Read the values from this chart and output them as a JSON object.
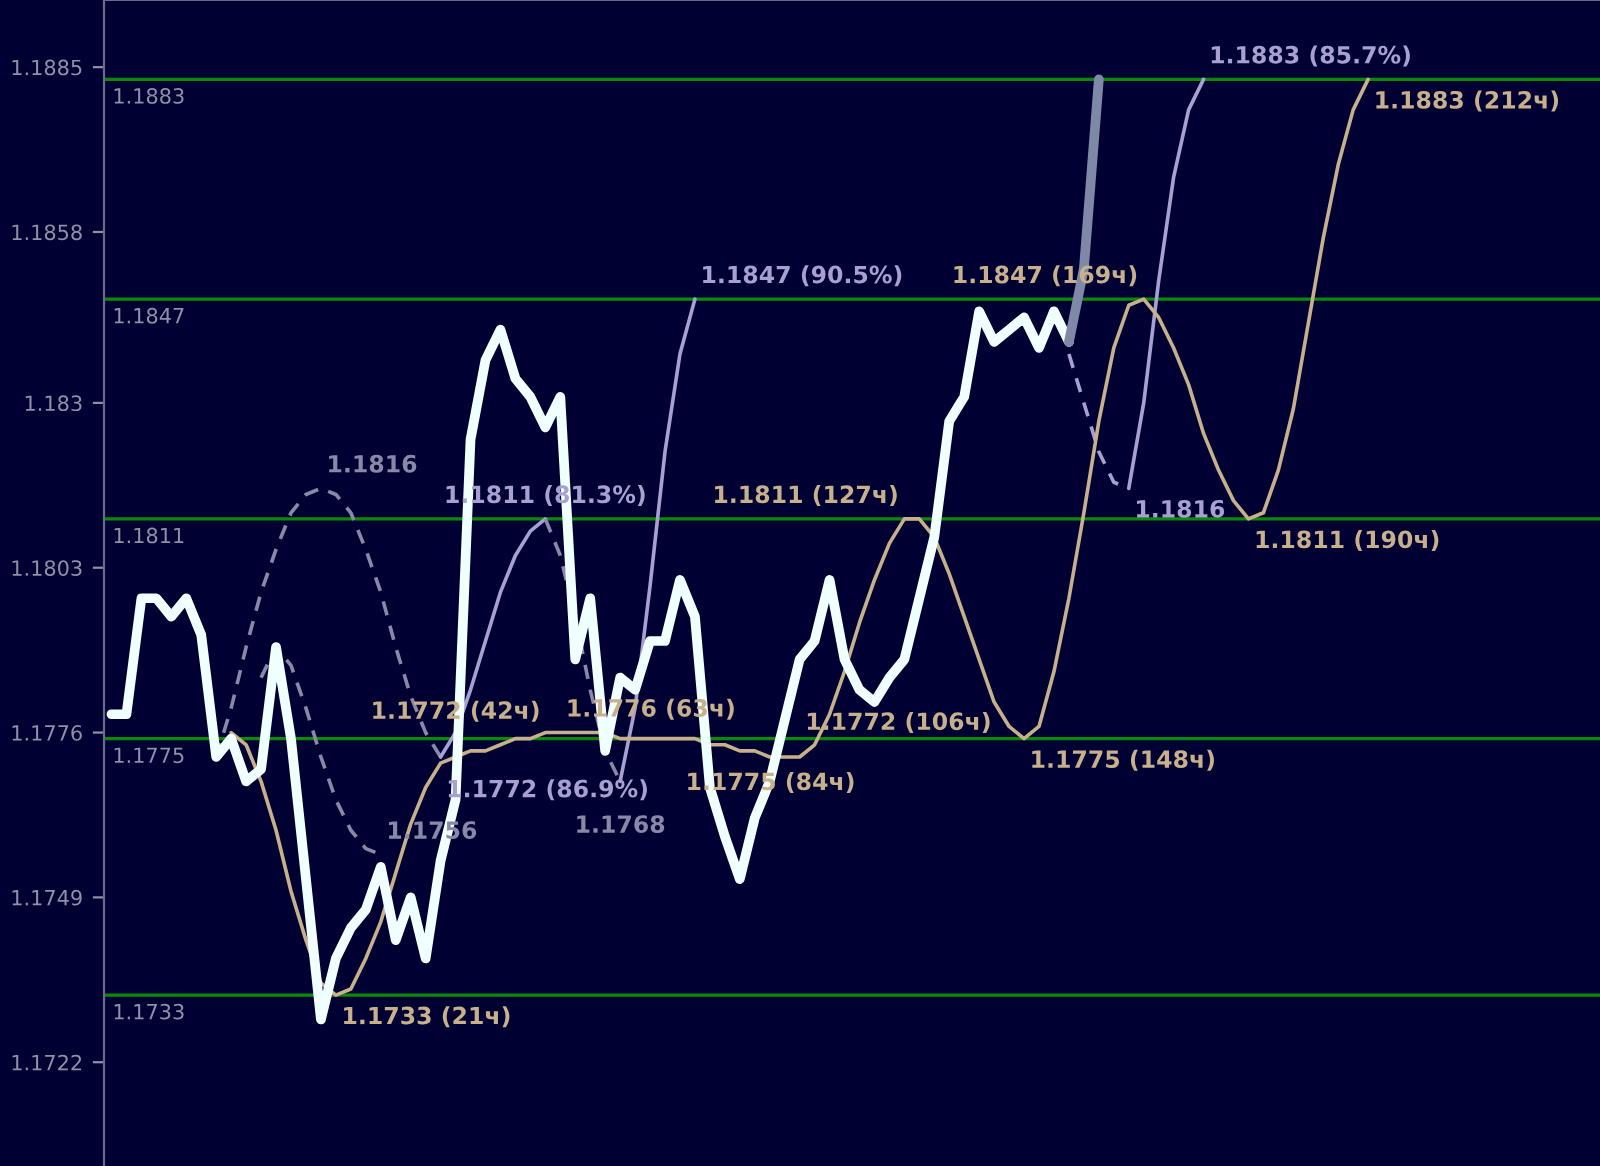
{
  "chart_data": {
    "type": "line",
    "categories": [
      null,
      null,
      null,
      null,
      null,
      null,
      null,
      null,
      null,
      null,
      null,
      null,
      null,
      null,
      null,
      null,
      null,
      null,
      null,
      null,
      null,
      null,
      null,
      null,
      null,
      null,
      null,
      null,
      null,
      null,
      null,
      null,
      null,
      null,
      null,
      null,
      null,
      null,
      null,
      null,
      null,
      null,
      null,
      null,
      null,
      null,
      null,
      null,
      null,
      null,
      null,
      null,
      null,
      null,
      null,
      null,
      null,
      null,
      null,
      null,
      null,
      null,
      null,
      null,
      null,
      null,
      null,
      null,
      null,
      null,
      null,
      null,
      null,
      null,
      null,
      null,
      null,
      null,
      null,
      null,
      null,
      null,
      null,
      null,
      null,
      null,
      null,
      null,
      null,
      null,
      null,
      null,
      null,
      null,
      null,
      null,
      null,
      null,
      null,
      null
    ],
    "ylim": [
      1.1705,
      1.1896
    ],
    "yticks": [
      1.1885,
      1.1858,
      1.183,
      1.1803,
      1.1776,
      1.1749,
      1.1722
    ],
    "tick_labels": "y",
    "grid": false,
    "legend": false,
    "line_style": "solid",
    "series": [
      {
        "color": "#f0ffff",
        "values": [
          1.1779,
          1.1779,
          1.1798,
          1.1798,
          1.1795,
          1.1798,
          1.1792,
          1.1772,
          1.1775,
          1.1768,
          1.177,
          1.179,
          1.1775,
          1.1752,
          1.1729,
          1.1739,
          1.1744,
          1.1747,
          1.1754,
          1.1742,
          1.1749,
          1.1739,
          1.1755,
          1.1765,
          1.1824,
          1.1837,
          1.1842,
          1.1834,
          1.1831,
          1.1826,
          1.1831,
          1.1788,
          1.1798,
          1.1773,
          1.1785,
          1.1783,
          1.1791,
          1.1791,
          1.1801,
          1.1795,
          1.1767,
          1.1759,
          1.1752,
          1.1762,
          1.1768,
          1.1778,
          1.1788,
          1.1791,
          1.1801,
          1.1788,
          1.1783,
          1.1781,
          1.1785,
          1.1788,
          1.1798,
          1.1808,
          1.1827,
          1.1831,
          1.1845,
          1.184,
          1.1842,
          1.1844,
          1.1839,
          1.1845,
          1.184,
          null,
          null,
          null,
          null,
          null,
          null,
          null,
          null,
          null,
          null,
          null,
          null,
          null,
          null,
          null,
          null,
          null,
          null,
          null,
          null,
          null,
          null,
          null,
          null,
          null,
          null,
          null,
          null,
          null,
          null,
          null,
          null,
          null,
          null,
          null
        ]
      },
      {
        "color": "#8088a8",
        "values": [
          null,
          null,
          null,
          null,
          null,
          null,
          null,
          null,
          null,
          null,
          null,
          null,
          null,
          null,
          null,
          null,
          null,
          null,
          null,
          null,
          null,
          null,
          null,
          null,
          null,
          null,
          null,
          null,
          null,
          null,
          null,
          null,
          null,
          null,
          null,
          null,
          null,
          null,
          null,
          null,
          null,
          null,
          null,
          null,
          null,
          null,
          null,
          null,
          null,
          null,
          null,
          null,
          null,
          null,
          null,
          null,
          null,
          null,
          null,
          null,
          null,
          null,
          null,
          null,
          1.184,
          1.1852,
          1.1883,
          null,
          null,
          null,
          null,
          null,
          null,
          null,
          null,
          null,
          null,
          null,
          null,
          null,
          null,
          null,
          null,
          null,
          null,
          null,
          null,
          null,
          null,
          null,
          null,
          null,
          null,
          null,
          null,
          null,
          null,
          null,
          null,
          null
        ]
      },
      {
        "color": "#8a88a8",
        "line_style": "dashed",
        "values": [
          null,
          null,
          null,
          null,
          null,
          null,
          null,
          1.1772,
          1.178,
          1.179,
          1.1799,
          1.1806,
          1.1812,
          1.1815,
          1.1816,
          1.1815,
          1.1812,
          1.1806,
          1.1799,
          1.179,
          1.1782,
          1.1776,
          1.1772,
          null,
          null,
          null,
          null,
          null,
          null,
          null,
          null,
          null,
          null,
          null,
          null,
          null,
          null,
          null,
          null,
          null,
          null,
          null,
          null,
          null,
          null,
          null,
          null,
          null,
          null,
          null,
          null,
          null,
          null,
          null,
          null,
          null,
          null,
          null,
          null,
          null,
          null,
          null,
          null,
          null,
          null,
          null,
          null,
          null,
          null,
          null,
          null,
          null,
          null,
          null,
          null,
          null,
          null,
          null,
          null,
          null,
          null,
          null,
          null,
          null,
          null,
          null,
          null,
          null,
          null,
          null,
          null,
          null,
          null,
          null,
          null,
          null,
          null,
          null,
          null,
          null
        ],
        "value_labels": [
          null,
          null,
          null,
          null,
          null,
          null,
          null,
          null,
          null,
          null,
          null,
          null,
          null,
          null,
          "1.1816",
          null,
          null,
          null,
          null,
          null,
          null,
          null,
          null,
          null,
          null,
          null,
          null,
          null,
          null,
          null,
          null,
          null,
          null,
          null,
          null,
          null,
          null,
          null,
          null,
          null,
          null,
          null,
          null,
          null,
          null,
          null,
          null,
          null,
          null,
          null,
          null,
          null,
          null,
          null,
          null,
          null,
          null,
          null,
          null,
          null,
          null,
          null,
          null,
          null,
          null,
          null,
          null,
          null,
          null,
          null,
          null,
          null,
          null,
          null,
          null,
          null,
          null,
          null,
          null,
          null,
          null,
          null,
          null,
          null,
          null,
          null,
          null,
          null,
          null,
          null,
          null,
          null,
          null,
          null,
          null,
          null,
          null,
          null,
          null,
          null
        ]
      },
      {
        "color": "#8a88a8",
        "line_style": "dashed",
        "values": [
          null,
          null,
          null,
          null,
          null,
          null,
          null,
          null,
          null,
          null,
          1.1785,
          1.179,
          1.1787,
          1.178,
          1.1772,
          1.1765,
          1.176,
          1.1757,
          1.1756,
          null,
          null,
          null,
          null,
          null,
          null,
          null,
          null,
          null,
          null,
          null,
          null,
          null,
          null,
          null,
          null,
          null,
          null,
          null,
          null,
          null,
          null,
          null,
          null,
          null,
          null,
          null,
          null,
          null,
          null,
          null,
          null,
          null,
          null,
          null,
          null,
          null,
          null,
          null,
          null,
          null,
          null,
          null,
          null,
          null,
          null,
          null,
          null,
          null,
          null,
          null,
          null,
          null,
          null,
          null,
          null,
          null,
          null,
          null,
          null,
          null,
          null,
          null,
          null,
          null,
          null,
          null,
          null,
          null,
          null,
          null,
          null,
          null,
          null,
          null,
          null,
          null,
          null,
          null,
          null,
          null
        ],
        "value_labels": [
          null,
          null,
          null,
          null,
          null,
          null,
          null,
          null,
          null,
          null,
          null,
          null,
          null,
          null,
          null,
          null,
          null,
          null,
          "1.1756",
          null,
          null,
          null,
          null,
          null,
          null,
          null,
          null,
          null,
          null,
          null,
          null,
          null,
          null,
          null,
          null,
          null,
          null,
          null,
          null,
          null,
          null,
          null,
          null,
          null,
          null,
          null,
          null,
          null,
          null,
          null,
          null,
          null,
          null,
          null,
          null,
          null,
          null,
          null,
          null,
          null,
          null,
          null,
          null,
          null,
          null,
          null,
          null,
          null,
          null,
          null,
          null,
          null,
          null,
          null,
          null,
          null,
          null,
          null,
          null,
          null,
          null,
          null,
          null,
          null,
          null,
          null,
          null,
          null,
          null,
          null,
          null,
          null,
          null,
          null,
          null,
          null,
          null,
          null,
          null,
          null
        ]
      },
      {
        "color": "#a8a0d0",
        "values": [
          null,
          null,
          null,
          null,
          null,
          null,
          null,
          null,
          null,
          null,
          null,
          null,
          null,
          null,
          null,
          null,
          null,
          null,
          null,
          null,
          null,
          null,
          1.1772,
          1.1776,
          1.1783,
          1.1791,
          1.1799,
          1.1805,
          1.1809,
          1.1811,
          null,
          null,
          null,
          null,
          null,
          null,
          null,
          null,
          null,
          null,
          null,
          null,
          null,
          null,
          null,
          null,
          null,
          null,
          null,
          null,
          null,
          null,
          null,
          null,
          null,
          null,
          null,
          null,
          null,
          null,
          null,
          null,
          null,
          null,
          null,
          null,
          null,
          null,
          null,
          null,
          null,
          null,
          null,
          null,
          null,
          null,
          null,
          null,
          null,
          null,
          null,
          null,
          null,
          null,
          null,
          null,
          null,
          null,
          null,
          null,
          null,
          null,
          null,
          null,
          null,
          null,
          null,
          null,
          null,
          null
        ],
        "value_labels": [
          null,
          null,
          null,
          null,
          null,
          null,
          null,
          null,
          null,
          null,
          null,
          null,
          null,
          null,
          null,
          null,
          null,
          null,
          null,
          null,
          null,
          null,
          "1.1772 (86.9%)",
          null,
          null,
          null,
          null,
          null,
          null,
          "1.1811 (81.3%)",
          null,
          null,
          null,
          null,
          null,
          null,
          null,
          null,
          null,
          null,
          null,
          null,
          null,
          null,
          null,
          null,
          null,
          null,
          null,
          null,
          null,
          null,
          null,
          null,
          null,
          null,
          null,
          null,
          null,
          null,
          null,
          null,
          null,
          null,
          null,
          null,
          null,
          null,
          null,
          null,
          null,
          null,
          null,
          null,
          null,
          null,
          null,
          null,
          null,
          null,
          null,
          null,
          null,
          null,
          null,
          null,
          null,
          null,
          null,
          null,
          null,
          null,
          null,
          null,
          null,
          null,
          null,
          null,
          null,
          null
        ]
      },
      {
        "color": "#8a88a8",
        "line_style": "dashed",
        "values": [
          null,
          null,
          null,
          null,
          null,
          null,
          null,
          null,
          null,
          null,
          null,
          null,
          null,
          null,
          null,
          null,
          null,
          null,
          null,
          null,
          null,
          null,
          null,
          null,
          null,
          null,
          null,
          null,
          null,
          1.1811,
          1.1805,
          1.1795,
          1.1783,
          1.1773,
          1.1768,
          null,
          null,
          null,
          null,
          null,
          null,
          null,
          null,
          null,
          null,
          null,
          null,
          null,
          null,
          null,
          null,
          null,
          null,
          null,
          null,
          null,
          null,
          null,
          null,
          null,
          null,
          null,
          null,
          null,
          null,
          null,
          null,
          null,
          null,
          null,
          null,
          null,
          null,
          null,
          null,
          null,
          null,
          null,
          null,
          null,
          null,
          null,
          null,
          null,
          null,
          null,
          null,
          null,
          null,
          null,
          null,
          null,
          null,
          null,
          null,
          null,
          null,
          null,
          null,
          null
        ],
        "value_labels": [
          null,
          null,
          null,
          null,
          null,
          null,
          null,
          null,
          null,
          null,
          null,
          null,
          null,
          null,
          null,
          null,
          null,
          null,
          null,
          null,
          null,
          null,
          null,
          null,
          null,
          null,
          null,
          null,
          null,
          null,
          null,
          null,
          null,
          null,
          "1.1768",
          null,
          null,
          null,
          null,
          null,
          null,
          null,
          null,
          null,
          null,
          null,
          null,
          null,
          null,
          null,
          null,
          null,
          null,
          null,
          null,
          null,
          null,
          null,
          null,
          null,
          null,
          null,
          null,
          null,
          null,
          null,
          null,
          null,
          null,
          null,
          null,
          null,
          null,
          null,
          null,
          null,
          null,
          null,
          null,
          null,
          null,
          null,
          null,
          null,
          null,
          null,
          null,
          null,
          null,
          null,
          null,
          null,
          null,
          null,
          null,
          null,
          null,
          null,
          null,
          null
        ]
      },
      {
        "color": "#a8a0d0",
        "values": [
          null,
          null,
          null,
          null,
          null,
          null,
          null,
          null,
          null,
          null,
          null,
          null,
          null,
          null,
          null,
          null,
          null,
          null,
          null,
          null,
          null,
          null,
          null,
          null,
          null,
          null,
          null,
          null,
          null,
          null,
          null,
          null,
          null,
          null,
          1.1768,
          1.178,
          1.18,
          1.1822,
          1.1838,
          1.1847,
          null,
          null,
          null,
          null,
          null,
          null,
          null,
          null,
          null,
          null,
          null,
          null,
          null,
          null,
          null,
          null,
          null,
          null,
          null,
          null,
          null,
          null,
          null,
          null,
          null,
          null,
          null,
          null,
          null,
          null,
          null,
          null,
          null,
          null,
          null,
          null,
          null,
          null,
          null,
          null,
          null,
          null,
          null,
          null,
          null,
          null,
          null,
          null,
          null,
          null,
          null,
          null,
          null,
          null,
          null,
          null,
          null,
          null,
          null,
          null
        ],
        "value_labels": [
          null,
          null,
          null,
          null,
          null,
          null,
          null,
          null,
          null,
          null,
          null,
          null,
          null,
          null,
          null,
          null,
          null,
          null,
          null,
          null,
          null,
          null,
          null,
          null,
          null,
          null,
          null,
          null,
          null,
          null,
          null,
          null,
          null,
          null,
          null,
          null,
          null,
          null,
          null,
          "1.1847 (90.5%)",
          null,
          null,
          null,
          null,
          null,
          null,
          null,
          null,
          null,
          null,
          null,
          null,
          null,
          null,
          null,
          null,
          null,
          null,
          null,
          null,
          null,
          null,
          null,
          null,
          null,
          null,
          null,
          null,
          null,
          null,
          null,
          null,
          null,
          null,
          null,
          null,
          null,
          null,
          null,
          null,
          null,
          null,
          null,
          null,
          null,
          null,
          null,
          null,
          null,
          null,
          null,
          null,
          null,
          null,
          null,
          null,
          null,
          null,
          null,
          null
        ]
      },
      {
        "color": "#a8a0d0",
        "line_style": "dashed",
        "values": [
          null,
          null,
          null,
          null,
          null,
          null,
          null,
          null,
          null,
          null,
          null,
          null,
          null,
          null,
          null,
          null,
          null,
          null,
          null,
          null,
          null,
          null,
          null,
          null,
          null,
          null,
          null,
          null,
          null,
          null,
          null,
          null,
          null,
          null,
          null,
          null,
          null,
          null,
          null,
          null,
          null,
          null,
          null,
          null,
          null,
          null,
          null,
          null,
          null,
          null,
          null,
          null,
          null,
          null,
          null,
          null,
          null,
          null,
          null,
          null,
          null,
          null,
          null,
          null,
          1.1838,
          1.183,
          1.1822,
          1.1817,
          1.1816,
          null,
          null,
          null,
          null,
          null,
          null,
          null,
          null,
          null,
          null,
          null,
          null,
          null,
          null,
          null,
          null,
          null,
          null,
          null,
          null,
          null,
          null,
          null,
          null,
          null,
          null,
          null,
          null,
          null,
          null,
          null
        ],
        "value_labels": [
          null,
          null,
          null,
          null,
          null,
          null,
          null,
          null,
          null,
          null,
          null,
          null,
          null,
          null,
          null,
          null,
          null,
          null,
          null,
          null,
          null,
          null,
          null,
          null,
          null,
          null,
          null,
          null,
          null,
          null,
          null,
          null,
          null,
          null,
          null,
          null,
          null,
          null,
          null,
          null,
          null,
          null,
          null,
          null,
          null,
          null,
          null,
          null,
          null,
          null,
          null,
          null,
          null,
          null,
          null,
          null,
          null,
          null,
          null,
          null,
          null,
          null,
          null,
          null,
          null,
          null,
          null,
          null,
          "1.1816",
          null,
          null,
          null,
          null,
          null,
          null,
          null,
          null,
          null,
          null,
          null,
          null,
          null,
          null,
          null,
          null,
          null,
          null,
          null,
          null,
          null,
          null,
          null,
          null,
          null,
          null,
          null,
          null,
          null,
          null,
          null
        ]
      },
      {
        "color": "#a8a0d0",
        "values": [
          null,
          null,
          null,
          null,
          null,
          null,
          null,
          null,
          null,
          null,
          null,
          null,
          null,
          null,
          null,
          null,
          null,
          null,
          null,
          null,
          null,
          null,
          null,
          null,
          null,
          null,
          null,
          null,
          null,
          null,
          null,
          null,
          null,
          null,
          null,
          null,
          null,
          null,
          null,
          null,
          null,
          null,
          null,
          null,
          null,
          null,
          null,
          null,
          null,
          null,
          null,
          null,
          null,
          null,
          null,
          null,
          null,
          null,
          null,
          null,
          null,
          null,
          null,
          null,
          null,
          null,
          null,
          null,
          1.1816,
          1.183,
          1.185,
          1.1867,
          1.1878,
          1.1883,
          null,
          null,
          null,
          null,
          null,
          null,
          null,
          null,
          null,
          null,
          null,
          null,
          null,
          null,
          null,
          null,
          null,
          null,
          null,
          null,
          null,
          null,
          null,
          null,
          null,
          null
        ],
        "value_labels": [
          null,
          null,
          null,
          null,
          null,
          null,
          null,
          null,
          null,
          null,
          null,
          null,
          null,
          null,
          null,
          null,
          null,
          null,
          null,
          null,
          null,
          null,
          null,
          null,
          null,
          null,
          null,
          null,
          null,
          null,
          null,
          null,
          null,
          null,
          null,
          null,
          null,
          null,
          null,
          null,
          null,
          null,
          null,
          null,
          null,
          null,
          null,
          null,
          null,
          null,
          null,
          null,
          null,
          null,
          null,
          null,
          null,
          null,
          null,
          null,
          null,
          null,
          null,
          null,
          null,
          null,
          null,
          null,
          null,
          null,
          null,
          null,
          null,
          "1.1883 (85.7%)",
          null,
          null,
          null,
          null,
          null,
          null,
          null,
          null,
          null,
          null,
          null,
          null,
          null,
          null,
          null,
          null,
          null,
          null,
          null,
          null,
          null,
          null,
          null,
          null,
          null,
          null
        ]
      },
      {
        "color": "#c8b08c",
        "values": [
          null,
          null,
          null,
          null,
          null,
          null,
          null,
          null,
          1.1776,
          1.1774,
          1.1768,
          1.176,
          1.175,
          1.1742,
          1.1735,
          1.1733,
          1.1734,
          1.1739,
          1.1745,
          1.1753,
          1.1761,
          1.1767,
          1.1771,
          1.1772,
          1.1773,
          1.1773,
          1.1774,
          1.1775,
          1.1775,
          1.1776,
          1.1776,
          1.1776,
          1.1776,
          1.1776,
          1.1775,
          1.1775,
          1.1775,
          1.1775,
          1.1775,
          1.1775,
          1.1774,
          1.1774,
          1.1773,
          1.1773,
          1.1772,
          1.1772,
          1.1772,
          1.1774,
          1.1779,
          1.1786,
          1.1794,
          1.1801,
          1.1807,
          1.1811,
          1.1811,
          1.1808,
          1.1802,
          1.1795,
          1.1788,
          1.1781,
          1.1777,
          1.1775,
          1.1777,
          1.1786,
          1.1798,
          1.1812,
          1.1827,
          1.1839,
          1.1846,
          1.1847,
          1.1844,
          1.1839,
          1.1833,
          1.1825,
          1.1819,
          1.1814,
          1.1811,
          1.1812,
          1.1819,
          1.1829,
          1.1843,
          1.1857,
          1.1869,
          1.1878,
          1.1883,
          null,
          null,
          null,
          null,
          null,
          null,
          null,
          null,
          null,
          null,
          null,
          null,
          null,
          null,
          null
        ],
        "value_labels": [
          null,
          null,
          null,
          null,
          null,
          null,
          null,
          null,
          null,
          null,
          null,
          null,
          null,
          null,
          null,
          "1.1733 (21ч)",
          null,
          null,
          null,
          null,
          null,
          null,
          null,
          "1.1772 (42ч)",
          null,
          null,
          null,
          null,
          null,
          null,
          "1.1776 (63ч)",
          null,
          null,
          null,
          null,
          null,
          null,
          null,
          "1.1775 (84ч)",
          null,
          null,
          null,
          null,
          null,
          null,
          null,
          "1.1772 (106ч)",
          null,
          null,
          null,
          null,
          null,
          null,
          "1.1811 (127ч)",
          null,
          null,
          null,
          null,
          null,
          null,
          null,
          "1.1775 (148ч)",
          null,
          null,
          null,
          null,
          null,
          null,
          null,
          "1.1847 (169ч)",
          null,
          null,
          null,
          null,
          null,
          null,
          "1.1811 (190ч)",
          null,
          null,
          null,
          null,
          null,
          null,
          null,
          "1.1883 (212ч)",
          null,
          null,
          null,
          null,
          null,
          null,
          null,
          null,
          null,
          null,
          null,
          null,
          null,
          null,
          null
        ]
      }
    ],
    "ref_lines": [
      {
        "axis": "y",
        "value": 1.1883,
        "label": "1.1883",
        "color": "#0a8a0a"
      },
      {
        "axis": "y",
        "value": 1.1847,
        "label": "1.1847",
        "color": "#0a8a0a"
      },
      {
        "axis": "y",
        "value": 1.1811,
        "label": "1.1811",
        "color": "#0a8a0a"
      },
      {
        "axis": "y",
        "value": 1.1775,
        "label": "1.1775",
        "color": "#0a8a0a"
      },
      {
        "axis": "y",
        "value": 1.1733,
        "label": "1.1733",
        "color": "#0a8a0a"
      }
    ]
  }
}
